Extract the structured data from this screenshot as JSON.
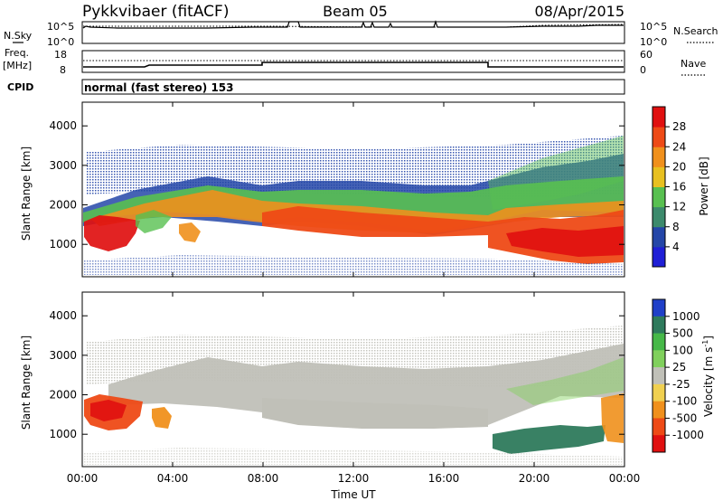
{
  "header": {
    "title": "Pykkvibaer (fitACF)",
    "beam": "Beam 05",
    "date": "08/Apr/2015"
  },
  "top_panel": {
    "n_sky_label": "N.Sky",
    "n_search_label": "N.Search",
    "tick_hi": "10^5",
    "tick_lo": "10^0",
    "freq_label_1": "Freq.",
    "freq_label_2": "[MHz]",
    "freq_ticks": [
      "18",
      "8"
    ],
    "nave_label": "Nave",
    "nave_ticks": [
      "60",
      "0"
    ],
    "cpid_label": "CPID",
    "cpid_text": "normal (fast stereo) 153"
  },
  "time_axis": {
    "label": "Time UT",
    "ticks": [
      "00:00",
      "04:00",
      "08:00",
      "12:00",
      "16:00",
      "20:00",
      "00:00"
    ]
  },
  "range_axis": {
    "label": "Slant Range [km]",
    "ticks": [
      "1000",
      "2000",
      "3000",
      "4000"
    ]
  },
  "power_scale": {
    "label": "Power [dB]",
    "ticks": [
      "4",
      "8",
      "12",
      "16",
      "20",
      "24",
      "28"
    ],
    "colors": [
      "#1f1fd6",
      "#2446a8",
      "#3c8a6c",
      "#58c050",
      "#e8c020",
      "#f0901c",
      "#ee4a16",
      "#e01010"
    ]
  },
  "velocity_scale": {
    "label": "Velocity [m s",
    "label_sup": "-1",
    "label_end": "]",
    "ticks": [
      "1000",
      "500",
      "100",
      "25",
      "-25",
      "-100",
      "-500",
      "-1000"
    ],
    "colors": [
      "#1f3fc8",
      "#2e7a5c",
      "#46b848",
      "#80d05c",
      "#c0c0b8",
      "#f0d050",
      "#f0901c",
      "#ee4a16",
      "#e01010"
    ]
  },
  "chart_data": [
    {
      "type": "line",
      "title": "N.Sky / N.Search",
      "xlabel": "Time UT",
      "ylabel": "N.Sky",
      "ylim": [
        1,
        100000
      ],
      "log_y": true,
      "x": [
        "00:00",
        "24:00"
      ],
      "series": [
        {
          "name": "N.Sky",
          "values": "near top of scale throughout"
        },
        {
          "name": "N.Search",
          "values": "near top of scale throughout"
        }
      ]
    },
    {
      "type": "line",
      "title": "Freq. / Nave",
      "xlabel": "Time UT",
      "ylabel": "Freq. [MHz]",
      "ylim": [
        8,
        18
      ],
      "x": [
        "00:00",
        "02:00",
        "08:00",
        "18:00",
        "24:00"
      ],
      "series": [
        {
          "name": "Freq.",
          "values": [
            9,
            10,
            12,
            10,
            10
          ]
        },
        {
          "name": "Nave",
          "values": [
            27,
            27,
            27,
            27,
            27
          ]
        }
      ]
    },
    {
      "type": "heatmap",
      "title": "Power",
      "xlabel": "Time UT",
      "ylabel": "Slant Range [km]",
      "xlim": [
        0,
        24
      ],
      "ylim": [
        180,
        4600
      ],
      "colorbar": {
        "label": "Power [dB]",
        "range": [
          0,
          32
        ],
        "ticks": [
          4,
          8,
          12,
          16,
          20,
          24,
          28
        ]
      },
      "regions": [
        {
          "t": [
            0.3,
            1.9
          ],
          "range": [
            800,
            1450
          ],
          "value": 24
        },
        {
          "t": [
            2.8,
            3.3
          ],
          "range": [
            850,
            1250
          ],
          "value": 22
        },
        {
          "t": [
            1,
            8
          ],
          "range": [
            1600,
            2100
          ],
          "value": 22
        },
        {
          "t": [
            8,
            18
          ],
          "range": [
            1250,
            2300
          ],
          "value": 24
        },
        {
          "t": [
            18,
            24
          ],
          "range": [
            850,
            1600
          ],
          "value": 26
        },
        {
          "t": [
            0,
            24
          ],
          "range": [
            2200,
            3200
          ],
          "value": 6
        }
      ]
    },
    {
      "type": "heatmap",
      "title": "Velocity",
      "xlabel": "Time UT",
      "ylabel": "Slant Range [km]",
      "xlim": [
        0,
        24
      ],
      "ylim": [
        180,
        4600
      ],
      "colorbar": {
        "label": "Velocity [m s-1]",
        "ticks": [
          1000,
          500,
          100,
          25,
          -25,
          -100,
          -500,
          -1000
        ]
      },
      "regions": [
        {
          "t": [
            0.3,
            2.5
          ],
          "range": [
            1000,
            1700
          ],
          "value": -500
        },
        {
          "t": [
            3.3,
            4.0
          ],
          "range": [
            900,
            1300
          ],
          "value": -300
        },
        {
          "t": [
            0.5,
            18
          ],
          "range": [
            1300,
            2700
          ],
          "value": 0
        },
        {
          "t": [
            18,
            22.5
          ],
          "range": [
            750,
            1200
          ],
          "value": 400
        },
        {
          "t": [
            22.5,
            24
          ],
          "range": [
            900,
            1650
          ],
          "value": -100
        }
      ]
    }
  ]
}
